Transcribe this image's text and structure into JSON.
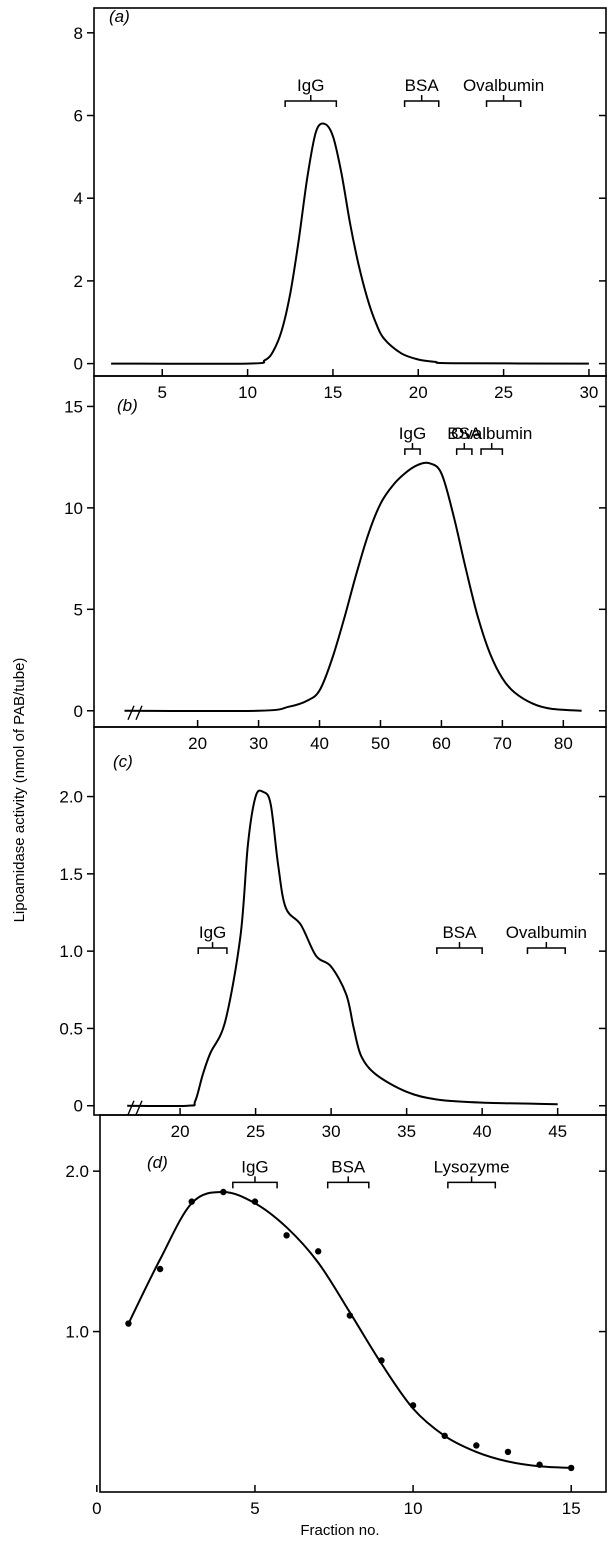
{
  "figure": {
    "ylabel": "Lipoamidase activity (nmol of PAB/tube)",
    "xlabel": "Fraction no."
  },
  "chart_data": [
    {
      "type": "line",
      "panel_label": "(a)",
      "xlim": [
        1,
        31
      ],
      "ylim": [
        -0.3,
        8.6
      ],
      "xticks": [
        5,
        10,
        15,
        20,
        25,
        30
      ],
      "xtick_labels": [
        "5",
        "10",
        "15",
        "20",
        "25",
        "30"
      ],
      "yticks": [
        0,
        2,
        4,
        6,
        8
      ],
      "ytick_labels": [
        "0",
        "2",
        "4",
        "6",
        "8"
      ],
      "axis_break": false,
      "markers": [
        {
          "label": "IgG",
          "x0": 12.2,
          "x1": 15.2,
          "y": 6.35
        },
        {
          "label": "BSA",
          "x0": 19.2,
          "x1": 21.2,
          "y": 6.35
        },
        {
          "label": "Ovalbumin",
          "x0": 24.0,
          "x1": 26.0,
          "y": 6.35
        }
      ],
      "series": [
        {
          "x": [
            2,
            10,
            11,
            11.5,
            12,
            12.5,
            13,
            13.5,
            14,
            14.5,
            15,
            15.5,
            16,
            16.5,
            17,
            17.5,
            18,
            19,
            20,
            21,
            22,
            30
          ],
          "y": [
            0,
            0,
            0.08,
            0.3,
            0.8,
            1.7,
            3.0,
            4.5,
            5.6,
            5.8,
            5.5,
            4.6,
            3.4,
            2.4,
            1.6,
            1.0,
            0.6,
            0.25,
            0.1,
            0.04,
            0.01,
            0
          ]
        }
      ]
    },
    {
      "type": "line",
      "panel_label": "(b)",
      "xlim": [
        3,
        87
      ],
      "ylim": [
        -0.8,
        16.5
      ],
      "xticks": [
        20,
        30,
        40,
        50,
        60,
        70,
        80
      ],
      "xtick_labels": [
        "20",
        "30",
        "40",
        "50",
        "60",
        "70",
        "80"
      ],
      "yticks": [
        0,
        5,
        10,
        15
      ],
      "ytick_labels": [
        "0",
        "5",
        "10",
        "15"
      ],
      "axis_break": true,
      "markers": [
        {
          "label": "IgG",
          "x0": 54.0,
          "x1": 56.5,
          "y": 12.9
        },
        {
          "label": "BSA",
          "x0": 62.5,
          "x1": 65.0,
          "y": 12.9
        },
        {
          "label": "Ovalbumin",
          "x0": 66.5,
          "x1": 70.0,
          "y": 12.9
        }
      ],
      "series": [
        {
          "x": [
            8,
            30,
            35,
            38,
            40,
            42,
            44,
            46,
            48,
            50,
            52,
            54,
            56,
            58,
            60,
            62,
            64,
            66,
            68,
            70,
            72,
            75,
            78,
            83
          ],
          "y": [
            0,
            0,
            0.2,
            0.5,
            1.0,
            2.5,
            4.5,
            6.7,
            8.7,
            10.2,
            11.1,
            11.7,
            12.1,
            12.2,
            11.7,
            9.6,
            7.0,
            4.6,
            2.8,
            1.6,
            0.9,
            0.35,
            0.1,
            0
          ]
        }
      ]
    },
    {
      "type": "line",
      "panel_label": "(c)",
      "xlim": [
        14.3,
        48.2
      ],
      "ylim": [
        -0.06,
        2.45
      ],
      "xticks": [
        20,
        25,
        30,
        35,
        40,
        45
      ],
      "xtick_labels": [
        "20",
        "25",
        "30",
        "35",
        "40",
        "45"
      ],
      "yticks": [
        0,
        0.5,
        1.0,
        1.5,
        2.0
      ],
      "ytick_labels": [
        "0",
        "0.5",
        "1.0",
        "1.5",
        "2.0"
      ],
      "axis_break": true,
      "markers": [
        {
          "label": "IgG",
          "x0": 21.2,
          "x1": 23.1,
          "y": 1.02
        },
        {
          "label": "BSA",
          "x0": 37.0,
          "x1": 40.0,
          "y": 1.02
        },
        {
          "label": "Ovalbumin",
          "x0": 43.0,
          "x1": 45.5,
          "y": 1.02
        }
      ],
      "series": [
        {
          "x": [
            16.5,
            20.5,
            21,
            21.5,
            22,
            23,
            24,
            24.5,
            25,
            25.5,
            26,
            26.5,
            27,
            28,
            29,
            30,
            31,
            31.5,
            32,
            33,
            35,
            37,
            40,
            45
          ],
          "y": [
            0,
            0,
            0.03,
            0.2,
            0.34,
            0.55,
            1.1,
            1.7,
            2.0,
            2.03,
            1.95,
            1.55,
            1.28,
            1.17,
            0.97,
            0.9,
            0.72,
            0.5,
            0.32,
            0.2,
            0.09,
            0.04,
            0.02,
            0.01
          ]
        }
      ]
    },
    {
      "type": "scatter",
      "panel_label": "(d)",
      "xlim": [
        0.1,
        16.1
      ],
      "ylim": [
        0,
        2.35
      ],
      "xticks": [
        0,
        5,
        10,
        15
      ],
      "xtick_labels": [
        "0",
        "5",
        "10",
        "15"
      ],
      "yticks": [
        1.0,
        2.0
      ],
      "ytick_labels": [
        "1.0",
        "2.0"
      ],
      "axis_break": false,
      "markers": [
        {
          "label": "IgG",
          "x0": 4.3,
          "x1": 5.7,
          "y": 1.93
        },
        {
          "label": "BSA",
          "x0": 7.3,
          "x1": 8.6,
          "y": 1.93
        },
        {
          "label": "Lysozyme",
          "x0": 11.1,
          "x1": 12.6,
          "y": 1.93
        }
      ],
      "points": {
        "x": [
          1,
          2,
          3,
          4,
          5,
          6,
          7,
          8,
          9,
          10,
          11,
          12,
          13,
          14,
          15
        ],
        "y": [
          1.05,
          1.39,
          1.81,
          1.87,
          1.81,
          1.6,
          1.5,
          1.1,
          0.82,
          0.54,
          0.35,
          0.29,
          0.25,
          0.17,
          0.15
        ]
      },
      "series": [
        {
          "x": [
            1,
            2,
            3,
            4,
            5,
            6,
            7,
            8,
            9,
            10,
            11,
            12,
            13,
            14,
            15
          ],
          "y": [
            1.05,
            1.45,
            1.8,
            1.87,
            1.8,
            1.65,
            1.43,
            1.12,
            0.8,
            0.52,
            0.35,
            0.25,
            0.19,
            0.16,
            0.15
          ]
        }
      ]
    }
  ]
}
